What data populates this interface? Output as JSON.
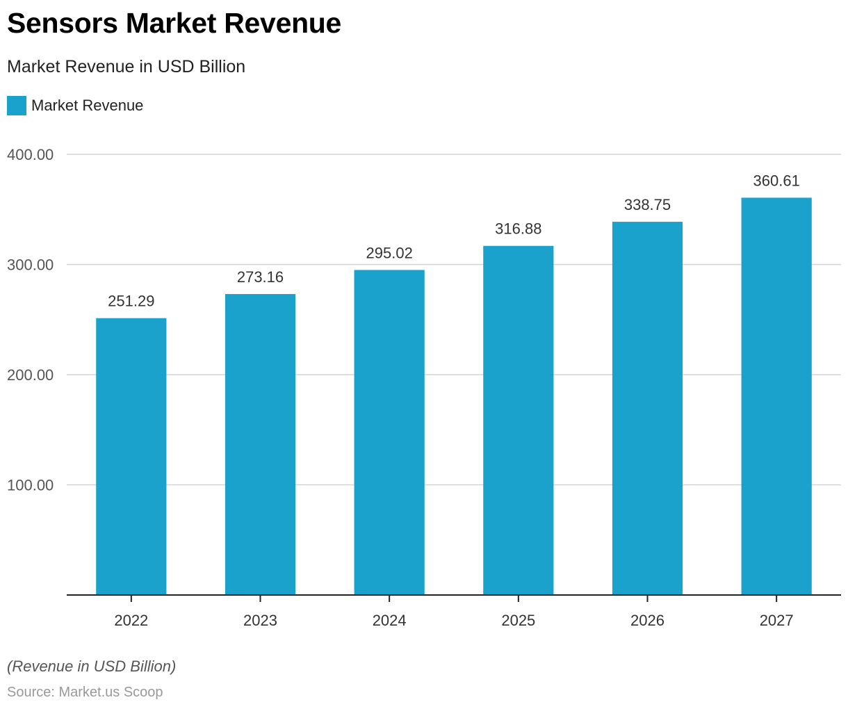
{
  "header": {
    "title": "Sensors Market Revenue",
    "subtitle": "Market Revenue in USD Billion"
  },
  "legend": {
    "label": "Market Revenue",
    "color": "#1aa1cc"
  },
  "footer": {
    "note": "(Revenue in USD Billion)",
    "source": "Source: Market.us Scoop"
  },
  "chart_data": {
    "type": "bar",
    "title": "Sensors Market Revenue",
    "subtitle": "Market Revenue in USD Billion",
    "xlabel": "",
    "ylabel": "",
    "categories": [
      "2022",
      "2023",
      "2024",
      "2025",
      "2026",
      "2027"
    ],
    "series": [
      {
        "name": "Market Revenue",
        "color": "#1aa1cc",
        "values": [
          251.29,
          273.16,
          295.02,
          316.88,
          338.75,
          360.61
        ]
      }
    ],
    "data_labels": [
      "251.29",
      "273.16",
      "295.02",
      "316.88",
      "338.75",
      "360.61"
    ],
    "ylim": [
      0,
      400
    ],
    "yticks": [
      100,
      200,
      300,
      400
    ],
    "ytick_labels": [
      "100.00",
      "200.00",
      "300.00",
      "400.00"
    ],
    "grid": true,
    "legend_position": "top-left"
  }
}
